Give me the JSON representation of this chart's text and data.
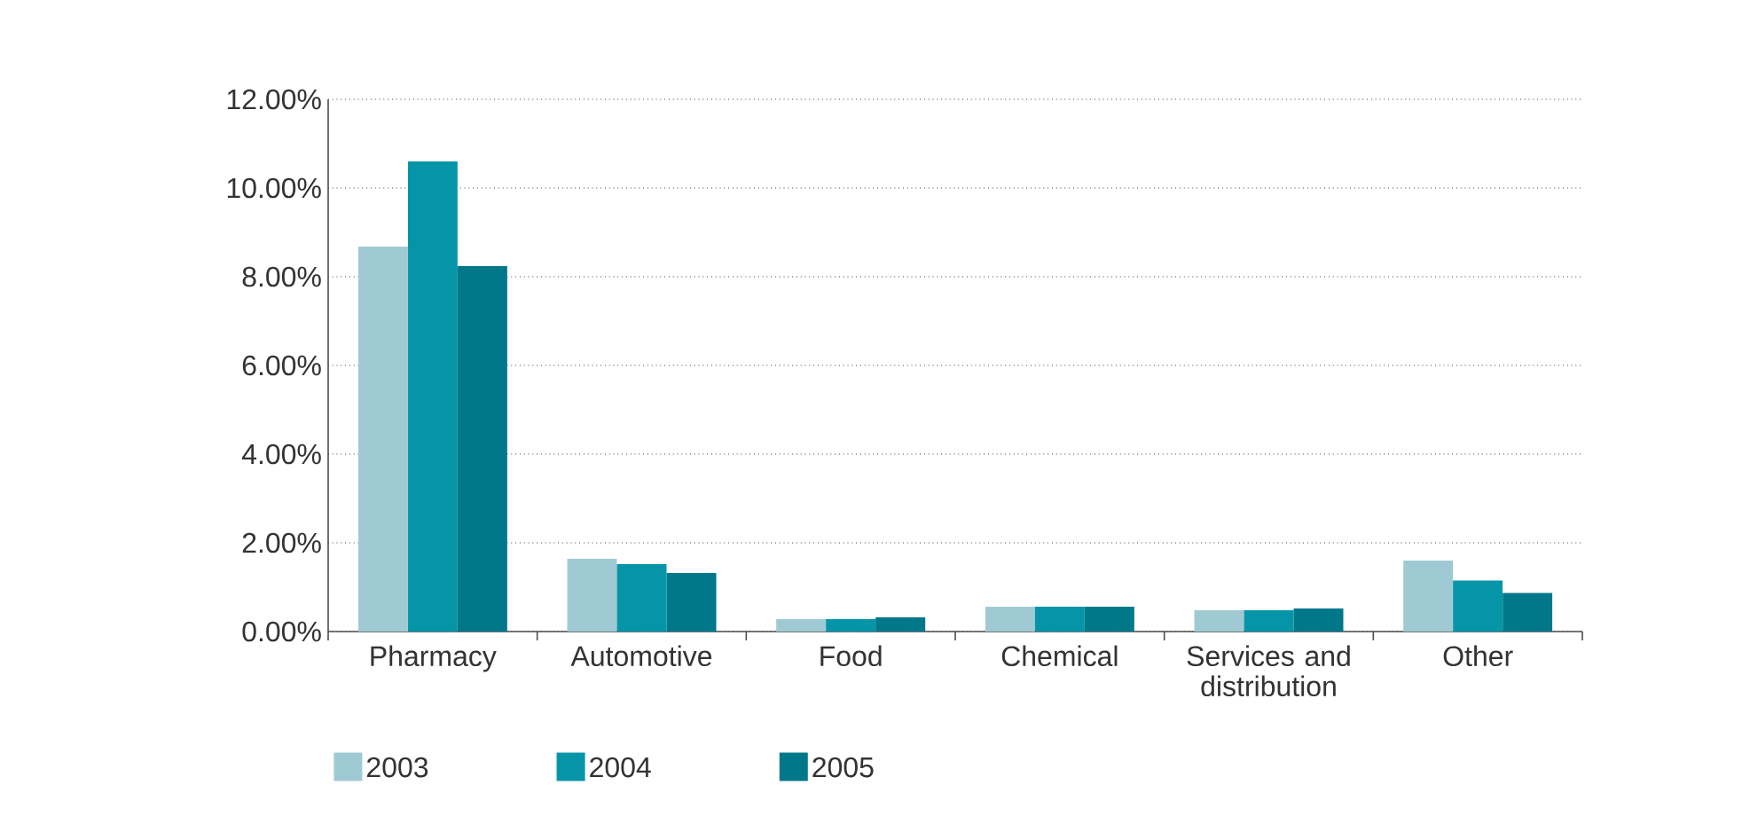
{
  "chart_data": {
    "type": "bar",
    "categories": [
      "Pharmacy",
      "Automotive",
      "Food",
      "Chemical",
      "Services and distribution",
      "Other"
    ],
    "series": [
      {
        "name": "2003",
        "color": "#a0cad3",
        "values": [
          8.68,
          1.64,
          0.28,
          0.56,
          0.48,
          1.6
        ]
      },
      {
        "name": "2004",
        "color": "#0695a8",
        "values": [
          10.6,
          1.52,
          0.28,
          0.56,
          0.48,
          1.15
        ]
      },
      {
        "name": "2005",
        "color": "#00788a",
        "values": [
          8.24,
          1.32,
          0.32,
          0.56,
          0.52,
          0.87
        ]
      }
    ],
    "ylim": [
      0,
      12
    ],
    "yticks": [
      {
        "value": 0,
        "label": "0.00%"
      },
      {
        "value": 2,
        "label": "2.00%"
      },
      {
        "value": 4,
        "label": "4.00%"
      },
      {
        "value": 6,
        "label": "6.00%"
      },
      {
        "value": 8,
        "label": "8.00%"
      },
      {
        "value": 10,
        "label": "10.00%"
      },
      {
        "value": 12,
        "label": "12.00%"
      }
    ],
    "grid": "y",
    "legend": "bottom left"
  }
}
